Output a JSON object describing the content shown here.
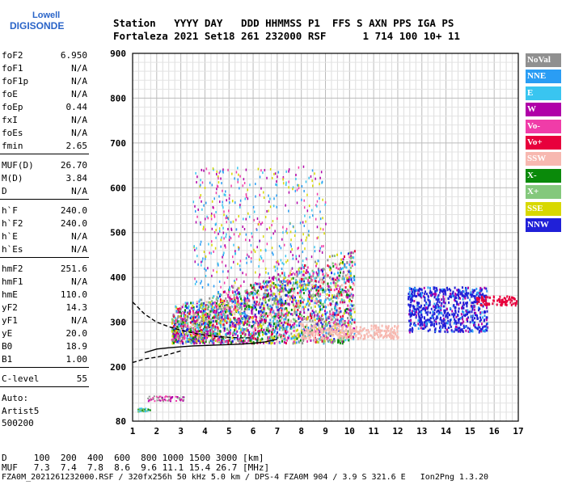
{
  "logo": {
    "top": "Lowell",
    "main": "DIGISONDE"
  },
  "header": {
    "row1": "Station   YYYY DAY   DDD HHMMSS P1  FFS S AXN PPS IGA PS",
    "row2": "Fortaleza 2021 Set18 261 232000 RSF      1 714 100 10+ 11"
  },
  "params": [
    {
      "name": "foF2",
      "value": "6.950"
    },
    {
      "name": "foF1",
      "value": "N/A"
    },
    {
      "name": "foF1p",
      "value": "N/A"
    },
    {
      "name": "foE",
      "value": "N/A"
    },
    {
      "name": "foEp",
      "value": "0.44"
    },
    {
      "name": "fxI",
      "value": "N/A"
    },
    {
      "name": "foEs",
      "value": "N/A"
    },
    {
      "name": "fmin",
      "value": "2.65"
    },
    {
      "name": "MUF(D)",
      "value": "26.70"
    },
    {
      "name": "M(D)",
      "value": "3.84"
    },
    {
      "name": "D",
      "value": "N/A"
    },
    {
      "name": "h`F",
      "value": "240.0"
    },
    {
      "name": "h`F2",
      "value": "240.0"
    },
    {
      "name": "h`E",
      "value": "N/A"
    },
    {
      "name": "h`Es",
      "value": "N/A"
    },
    {
      "name": "hmF2",
      "value": "251.6"
    },
    {
      "name": "hmF1",
      "value": "N/A"
    },
    {
      "name": "hmE",
      "value": "110.0"
    },
    {
      "name": "yF2",
      "value": "14.3"
    },
    {
      "name": "yF1",
      "value": "N/A"
    },
    {
      "name": "yE",
      "value": "20.0"
    },
    {
      "name": "B0",
      "value": "18.9"
    },
    {
      "name": "B1",
      "value": "1.00"
    },
    {
      "name": "C-level",
      "value": "55"
    }
  ],
  "auto": {
    "line1": "Auto:",
    "line2": "Artist5",
    "line3": "500200"
  },
  "legend": [
    {
      "label": "NoVal",
      "color": "#909090"
    },
    {
      "label": "NNE",
      "color": "#2a9df4"
    },
    {
      "label": "E",
      "color": "#39c5f0"
    },
    {
      "label": "W",
      "color": "#b000a8"
    },
    {
      "label": "Vo-",
      "color": "#f03ca8"
    },
    {
      "label": "Vo+",
      "color": "#e8003c"
    },
    {
      "label": "SSW",
      "color": "#f7b8b0"
    },
    {
      "label": "X-",
      "color": "#0a8a0a"
    },
    {
      "label": "X+",
      "color": "#84c87c"
    },
    {
      "label": "SSE",
      "color": "#d8d800"
    },
    {
      "label": "NNW",
      "color": "#2020d8"
    }
  ],
  "bottom": {
    "row1": "D     100  200  400  600  800 1000 1500 3000 [km]",
    "row2": "MUF   7.3  7.4  7.8  8.6  9.6 11.1 15.4 26.7 [MHz]"
  },
  "footer": "FZA0M_2021261232000.RSF / 320fx256h 50 kHz 5.0 km / DPS-4 FZA0M 904 / 3.9 S 321.6 E   Ion2Png 1.3.20",
  "chart_data": {
    "type": "scatter",
    "title": "",
    "xlabel": "",
    "ylabel": "",
    "xlim": [
      1,
      17
    ],
    "ylim": [
      80,
      900
    ],
    "x_ticks": [
      "1",
      "2",
      "3",
      "4",
      "5",
      "6",
      "7",
      "8",
      "9",
      "10",
      "11",
      "12",
      "13",
      "14",
      "15",
      "16",
      "17"
    ],
    "y_ticks": [
      "80",
      "200",
      "300",
      "400",
      "500",
      "600",
      "700",
      "800",
      "900"
    ],
    "grid": true,
    "traces": [
      {
        "name": "O-trace",
        "style": "solid",
        "x": [
          1.5,
          2,
          2.5,
          3,
          3.5,
          4,
          4.5,
          5,
          5.5,
          6,
          6.5,
          7
        ],
        "y": [
          232,
          240,
          243,
          245,
          247,
          248,
          249,
          250,
          251,
          253,
          256,
          262
        ]
      },
      {
        "name": "X-trace",
        "style": "dashed",
        "x": [
          1,
          1.5,
          2,
          2.5,
          3,
          3.5,
          4,
          4.5,
          5,
          5.5,
          6
        ],
        "y": [
          345,
          318,
          300,
          290,
          282,
          276,
          271,
          268,
          266,
          265,
          265
        ]
      },
      {
        "name": "lower",
        "style": "dashed",
        "x": [
          1,
          1.5,
          2,
          2.5,
          3
        ],
        "y": [
          210,
          218,
          222,
          228,
          236
        ]
      }
    ]
  }
}
